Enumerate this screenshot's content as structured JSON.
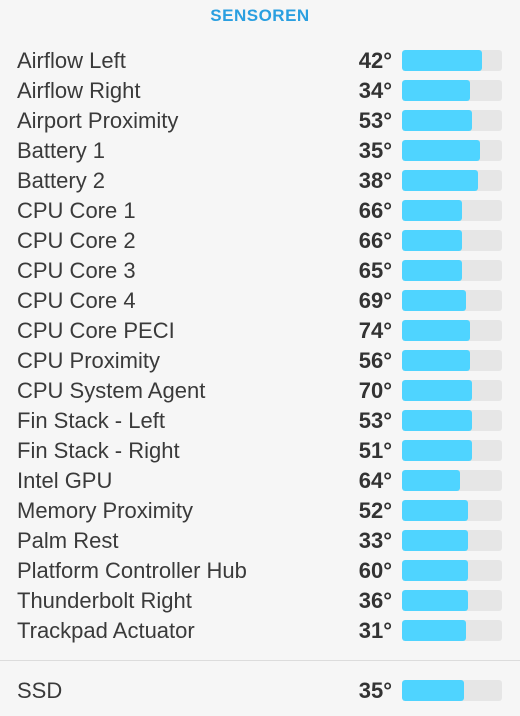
{
  "header": {
    "title": "SENSOREN"
  },
  "colors": {
    "accent": "#2a9fe0",
    "bar_fill": "#4fd4ff",
    "bar_track": "#e6e6e6"
  },
  "sensors": [
    {
      "label": "Airflow Left",
      "value": "42°",
      "level": 0.8
    },
    {
      "label": "Airflow Right",
      "value": "34°",
      "level": 0.68
    },
    {
      "label": "Airport Proximity",
      "value": "53°",
      "level": 0.7
    },
    {
      "label": "Battery 1",
      "value": "35°",
      "level": 0.78
    },
    {
      "label": "Battery 2",
      "value": "38°",
      "level": 0.76
    },
    {
      "label": "CPU Core 1",
      "value": "66°",
      "level": 0.6
    },
    {
      "label": "CPU Core 2",
      "value": "66°",
      "level": 0.6
    },
    {
      "label": "CPU Core 3",
      "value": "65°",
      "level": 0.6
    },
    {
      "label": "CPU Core 4",
      "value": "69°",
      "level": 0.64
    },
    {
      "label": "CPU Core PECI",
      "value": "74°",
      "level": 0.68
    },
    {
      "label": "CPU Proximity",
      "value": "56°",
      "level": 0.68
    },
    {
      "label": "CPU System Agent",
      "value": "70°",
      "level": 0.7
    },
    {
      "label": "Fin Stack - Left",
      "value": "53°",
      "level": 0.7
    },
    {
      "label": "Fin Stack - Right",
      "value": "51°",
      "level": 0.7
    },
    {
      "label": "Intel GPU",
      "value": "64°",
      "level": 0.58
    },
    {
      "label": "Memory Proximity",
      "value": "52°",
      "level": 0.66
    },
    {
      "label": "Palm Rest",
      "value": "33°",
      "level": 0.66
    },
    {
      "label": "Platform Controller Hub",
      "value": "60°",
      "level": 0.66
    },
    {
      "label": "Thunderbolt Right",
      "value": "36°",
      "level": 0.66
    },
    {
      "label": "Trackpad Actuator",
      "value": "31°",
      "level": 0.64
    }
  ],
  "ssd": {
    "label": "SSD",
    "value": "35°",
    "level": 0.62
  }
}
